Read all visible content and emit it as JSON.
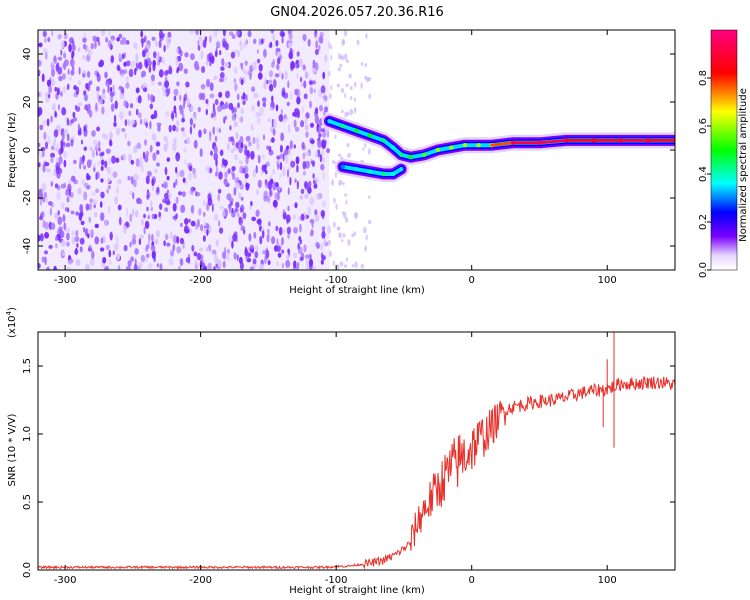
{
  "figure_title": "GN04.2026.057.20.36.R16",
  "chart_data": [
    {
      "type": "heatmap",
      "panel": "spectrogram",
      "xlabel": "Height of straight line (km)",
      "ylabel": "Frequency (Hz)",
      "xlim": [
        -320,
        150
      ],
      "ylim": [
        -50,
        50
      ],
      "x_ticks": [
        -300,
        -200,
        -100,
        0,
        100
      ],
      "y_ticks": [
        -40,
        -20,
        0,
        20,
        40
      ],
      "colorbar": {
        "label": "Normalized spectral amplitude",
        "range": [
          0,
          1
        ],
        "ticks": [
          0.0,
          0.2,
          0.4,
          0.6,
          0.8
        ],
        "colormap": [
          "#ffffff",
          "#7a00ff",
          "#0000ff",
          "#00ffff",
          "#00ff00",
          "#ffff00",
          "#ff0000",
          "#ff0080"
        ]
      },
      "noise_region": {
        "x_range": [
          -320,
          -105
        ],
        "level": [
          0.05,
          0.15
        ]
      },
      "sparse_region": {
        "x_range": [
          -105,
          -75
        ],
        "level": [
          0.02,
          0.06
        ]
      },
      "main_trace": {
        "x": [
          -105,
          -95,
          -85,
          -75,
          -65,
          -58,
          -52,
          -45,
          -35,
          -25,
          -15,
          -5,
          5,
          15,
          30,
          50,
          70,
          90,
          110,
          130,
          150
        ],
        "y": [
          12,
          10,
          8,
          6,
          4,
          1,
          -2,
          -3,
          -2,
          0,
          1,
          2,
          2,
          2,
          3,
          3,
          4,
          4,
          4,
          4,
          4
        ],
        "amplitude": [
          0.35,
          0.45,
          0.5,
          0.5,
          0.45,
          0.4,
          0.45,
          0.5,
          0.55,
          0.6,
          0.6,
          0.6,
          0.6,
          0.7,
          0.85,
          0.95,
          0.9,
          0.85,
          0.9,
          0.9,
          0.85
        ]
      },
      "secondary_trace": {
        "x": [
          -95,
          -85,
          -75,
          -65,
          -58,
          -52
        ],
        "y": [
          -7,
          -8,
          -9,
          -10,
          -10,
          -8
        ],
        "amplitude": [
          0.3,
          0.35,
          0.4,
          0.45,
          0.4,
          0.35
        ]
      }
    },
    {
      "type": "line",
      "panel": "snr",
      "xlabel": "Height of straight line (km)",
      "ylabel": "SNR (10 * V/V)",
      "scale_label": "(x10",
      "scale_exponent": "4",
      "scale_suffix": ")",
      "xlim": [
        -320,
        150
      ],
      "ylim": [
        0,
        1.75
      ],
      "x_ticks": [
        -300,
        -200,
        -100,
        0,
        100
      ],
      "y_ticks": [
        0.0,
        0.5,
        1.0,
        1.5
      ],
      "color": "#e8302a",
      "series": [
        {
          "name": "SNR",
          "x": [
            -320,
            -250,
            -200,
            -150,
            -110,
            -90,
            -75,
            -65,
            -55,
            -45,
            -40,
            -35,
            -30,
            -25,
            -20,
            -15,
            -10,
            -5,
            0,
            5,
            10,
            15,
            20,
            25,
            30,
            40,
            50,
            60,
            70,
            80,
            90,
            100,
            105,
            110,
            120,
            130,
            140,
            150
          ],
          "y": [
            0.02,
            0.02,
            0.02,
            0.02,
            0.02,
            0.03,
            0.05,
            0.07,
            0.12,
            0.2,
            0.35,
            0.45,
            0.52,
            0.6,
            0.68,
            0.75,
            0.8,
            0.85,
            0.9,
            0.95,
            1.0,
            1.05,
            1.12,
            1.18,
            1.2,
            1.22,
            1.24,
            1.25,
            1.27,
            1.3,
            1.32,
            1.33,
            1.35,
            1.37,
            1.37,
            1.38,
            1.38,
            1.36
          ]
        }
      ],
      "spikes": [
        {
          "x": 105,
          "y": 1.75
        },
        {
          "x": 105,
          "y": 0.9
        },
        {
          "x": 100,
          "y": 1.55
        },
        {
          "x": 97,
          "y": 1.05
        }
      ]
    }
  ]
}
